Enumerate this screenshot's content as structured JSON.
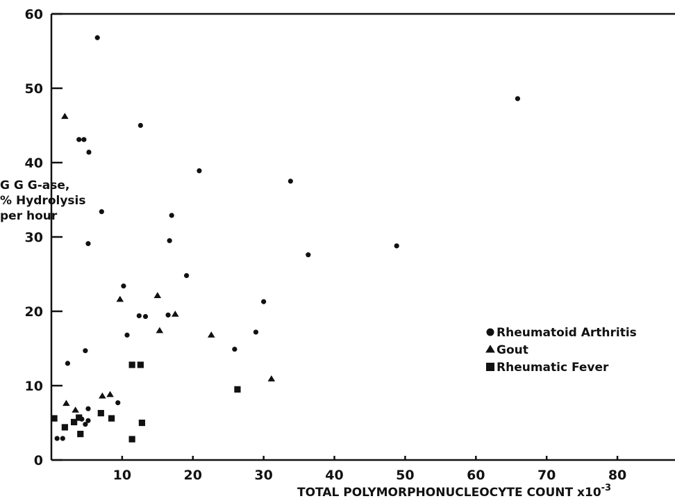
{
  "chart_data": {
    "type": "scatter",
    "xlabel": "TOTAL POLYMORPHONUCLEOCYTE COUNT x10",
    "xlabel_exponent": "-3",
    "ylabel_lines": [
      "G G G-ase,",
      "% Hydrolysis",
      "per hour"
    ],
    "xlim": [
      0,
      85
    ],
    "ylim": [
      0,
      60
    ],
    "x_ticks": [
      10,
      20,
      30,
      40,
      50,
      60,
      70,
      80
    ],
    "y_ticks": [
      0,
      10,
      20,
      30,
      40,
      50,
      60
    ],
    "legend_position": "right",
    "grid": false,
    "series": [
      {
        "name": "Rheumatoid Arthritis",
        "marker": "circle",
        "points": [
          [
            6.5,
            56.8
          ],
          [
            65.9,
            48.6
          ],
          [
            12.6,
            45.0
          ],
          [
            3.9,
            43.1
          ],
          [
            4.6,
            43.1
          ],
          [
            5.3,
            41.4
          ],
          [
            20.9,
            38.9
          ],
          [
            33.8,
            37.5
          ],
          [
            7.1,
            33.4
          ],
          [
            17.0,
            32.9
          ],
          [
            16.7,
            29.5
          ],
          [
            5.2,
            29.1
          ],
          [
            48.8,
            28.8
          ],
          [
            36.3,
            27.6
          ],
          [
            19.1,
            24.8
          ],
          [
            10.2,
            23.4
          ],
          [
            30.0,
            21.3
          ],
          [
            16.5,
            19.5
          ],
          [
            12.4,
            19.4
          ],
          [
            13.3,
            19.3
          ],
          [
            10.7,
            16.8
          ],
          [
            28.9,
            17.2
          ],
          [
            4.8,
            14.7
          ],
          [
            25.9,
            14.9
          ],
          [
            2.3,
            13.0
          ],
          [
            9.4,
            7.7
          ],
          [
            5.2,
            6.9
          ],
          [
            4.3,
            5.5
          ],
          [
            4.8,
            4.8
          ],
          [
            5.2,
            5.3
          ],
          [
            0.8,
            2.9
          ],
          [
            1.6,
            2.9
          ]
        ]
      },
      {
        "name": "Gout",
        "marker": "triangle",
        "points": [
          [
            1.9,
            46.2
          ],
          [
            9.7,
            21.6
          ],
          [
            15.0,
            22.1
          ],
          [
            15.3,
            17.4
          ],
          [
            17.5,
            19.6
          ],
          [
            22.6,
            16.8
          ],
          [
            31.1,
            10.9
          ],
          [
            2.1,
            7.6
          ],
          [
            3.4,
            6.7
          ],
          [
            7.2,
            8.6
          ],
          [
            8.3,
            8.8
          ]
        ]
      },
      {
        "name": "Rheumatic Fever",
        "marker": "square",
        "points": [
          [
            11.4,
            12.8
          ],
          [
            12.6,
            12.8
          ],
          [
            26.3,
            9.5
          ],
          [
            0.4,
            5.6
          ],
          [
            1.9,
            4.4
          ],
          [
            3.2,
            5.1
          ],
          [
            3.9,
            5.7
          ],
          [
            4.1,
            3.5
          ],
          [
            7.0,
            6.3
          ],
          [
            8.5,
            5.6
          ],
          [
            12.8,
            5.0
          ],
          [
            11.4,
            2.8
          ]
        ]
      }
    ]
  }
}
